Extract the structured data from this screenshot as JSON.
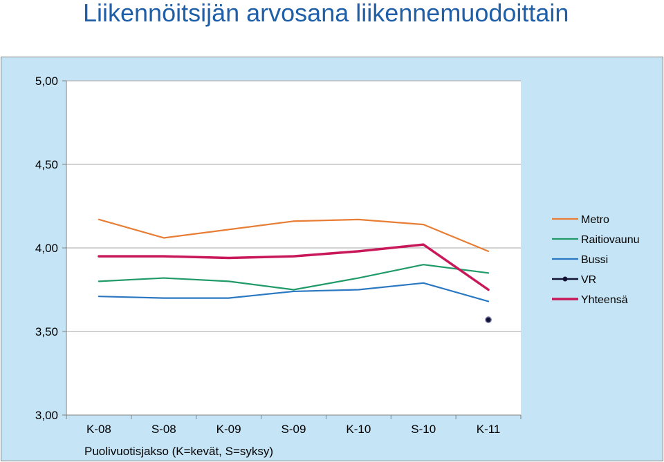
{
  "title": "Liikennöitsijän arvosana liikennemuodoittain",
  "chart_data": {
    "type": "line",
    "title": "Liikennöitsijän arvosana liikennemuodoittain",
    "xlabel": "Puolivuotisjakso (K=kevät, S=syksy)",
    "ylabel": "",
    "categories": [
      "K-08",
      "S-08",
      "K-09",
      "S-09",
      "K-10",
      "S-10",
      "K-11"
    ],
    "ylim": [
      3.0,
      5.0
    ],
    "yticks": [
      "3,00",
      "3,50",
      "4,00",
      "4,50",
      "5,00"
    ],
    "ytick_values": [
      3.0,
      3.5,
      4.0,
      4.5,
      5.0
    ],
    "grid": true,
    "legend_position": "right",
    "series": [
      {
        "name": "Metro",
        "color": "#e87d35",
        "values": [
          4.17,
          4.06,
          4.11,
          4.16,
          4.17,
          4.14,
          3.98
        ]
      },
      {
        "name": "Raitiovaunu",
        "color": "#1f9a68",
        "values": [
          3.8,
          3.82,
          3.8,
          3.75,
          3.82,
          3.9,
          3.85
        ]
      },
      {
        "name": "Bussi",
        "color": "#2a78c2",
        "values": [
          3.71,
          3.7,
          3.7,
          3.74,
          3.75,
          3.79,
          3.68
        ]
      },
      {
        "name": "VR",
        "color": "#111133",
        "marker": true,
        "values": [
          null,
          null,
          null,
          null,
          null,
          null,
          3.57
        ]
      },
      {
        "name": "Yhteensä",
        "color": "#c8185a",
        "values": [
          3.95,
          3.95,
          3.94,
          3.95,
          3.98,
          4.02,
          3.75
        ]
      }
    ]
  }
}
